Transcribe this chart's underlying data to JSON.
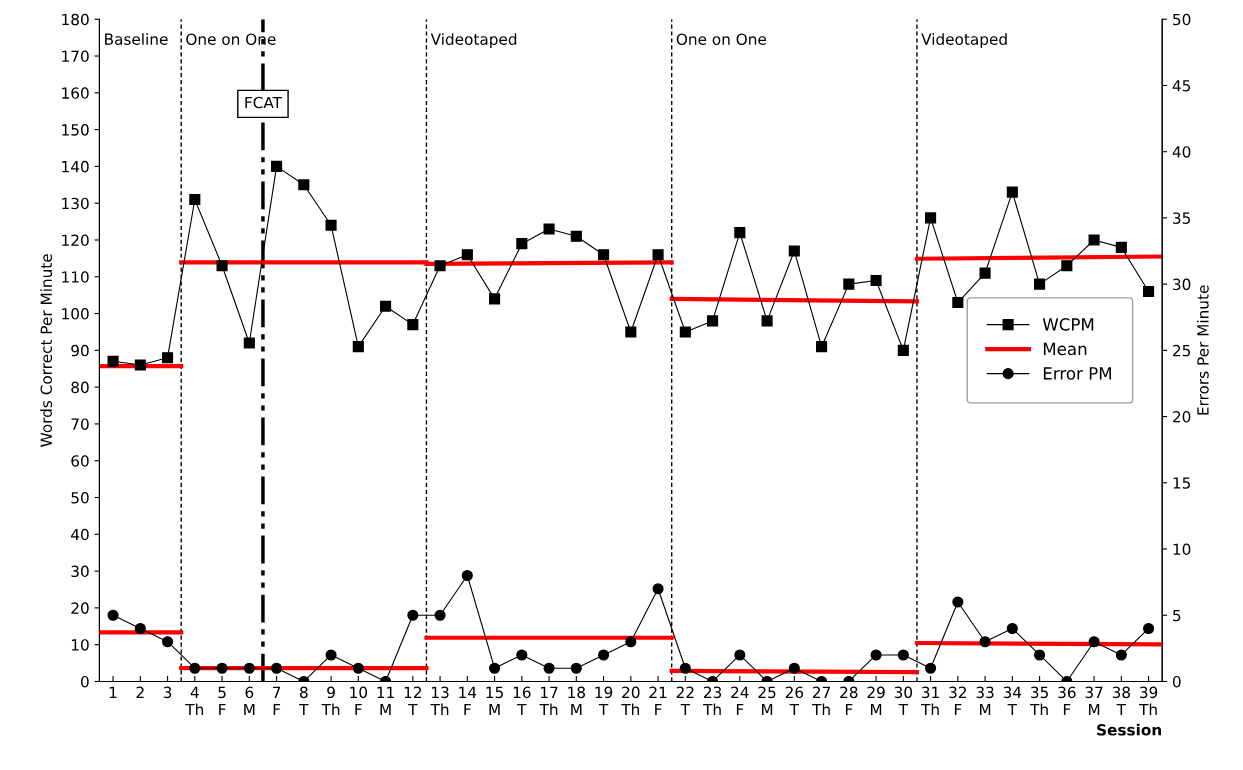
{
  "chart_data": {
    "type": "line",
    "xlabel": "Session",
    "ylabel": "Words Correct Per Minute",
    "y2label": "Errors Per Minute",
    "x": [
      1,
      2,
      3,
      4,
      5,
      6,
      7,
      8,
      9,
      10,
      11,
      12,
      13,
      14,
      15,
      16,
      17,
      18,
      19,
      20,
      21,
      22,
      23,
      24,
      25,
      26,
      27,
      28,
      29,
      30,
      31,
      32,
      33,
      34,
      35,
      36,
      37,
      38,
      39
    ],
    "xlim": [
      0.5,
      39.5
    ],
    "xticks": [
      1,
      2,
      3,
      {
        "value": 4,
        "label": "4\nTh"
      },
      {
        "value": 5,
        "label": "5\nF"
      },
      {
        "value": 6,
        "label": "6\nM"
      },
      {
        "value": 7,
        "label": "7\nF"
      },
      {
        "value": 8,
        "label": "8\nT"
      },
      {
        "value": 9,
        "label": "9\nTh"
      },
      {
        "value": 10,
        "label": "10\nF"
      },
      {
        "value": 11,
        "label": "11\nM"
      },
      {
        "value": 12,
        "label": "12\nT"
      },
      {
        "value": 13,
        "label": "13\nTh"
      },
      {
        "value": 14,
        "label": "14\nF"
      },
      {
        "value": 15,
        "label": "15\nM"
      },
      {
        "value": 16,
        "label": "16\nT"
      },
      {
        "value": 17,
        "label": "17\nTh"
      },
      {
        "value": 18,
        "label": "18\nM"
      },
      {
        "value": 19,
        "label": "19\nT"
      },
      {
        "value": 20,
        "label": "20\nTh"
      },
      {
        "value": 21,
        "label": "21\nF"
      },
      {
        "value": 22,
        "label": "22\nT"
      },
      {
        "value": 23,
        "label": "23\nTh"
      },
      {
        "value": 24,
        "label": "24\nF"
      },
      {
        "value": 25,
        "label": "25\nM"
      },
      {
        "value": 26,
        "label": "26\nT"
      },
      {
        "value": 27,
        "label": "27\nTh"
      },
      {
        "value": 28,
        "label": "28\nF"
      },
      {
        "value": 29,
        "label": "29\nM"
      },
      {
        "value": 30,
        "label": "30\nT"
      },
      {
        "value": 31,
        "label": "31\nTh"
      },
      {
        "value": 32,
        "label": "32\nF"
      },
      {
        "value": 33,
        "label": "33\nM"
      },
      {
        "value": 34,
        "label": "34\nT"
      },
      {
        "value": 35,
        "label": "35\nTh"
      },
      {
        "value": 36,
        "label": "36\nF"
      },
      {
        "value": 37,
        "label": "37\nM"
      },
      {
        "value": 38,
        "label": "38\nT"
      },
      {
        "value": 39,
        "label": "39\nTh"
      }
    ],
    "ylim": [
      0,
      180
    ],
    "yticks": [
      0,
      10,
      20,
      30,
      40,
      50,
      60,
      70,
      80,
      90,
      100,
      110,
      120,
      130,
      140,
      150,
      160,
      170,
      180
    ],
    "y2lim": [
      0,
      50
    ],
    "y2ticks": [
      0,
      5,
      10,
      15,
      20,
      25,
      30,
      35,
      40,
      45,
      50
    ],
    "grid": false,
    "legend": "right",
    "series": [
      {
        "name": "WCPM",
        "color": "#000000",
        "marker": "square",
        "values": [
          87,
          86,
          88,
          131,
          113,
          92,
          140,
          135,
          124,
          91,
          102,
          97,
          113,
          116,
          104,
          119,
          123,
          121,
          116,
          95,
          116,
          95,
          98,
          122,
          98,
          117,
          91,
          108,
          109,
          90,
          126,
          103,
          111,
          133,
          108,
          113,
          120,
          118,
          106
        ]
      },
      {
        "name": "Mean",
        "color": "#ff0000",
        "marker": "none",
        "x": [
          0.5,
          3.5,
          null,
          3.5,
          12.5,
          null,
          12.5,
          21.5,
          null,
          21.5,
          30.5,
          null,
          30.5,
          39.5
        ],
        "values": [
          85.7,
          85.7,
          null,
          113.9,
          113.9,
          null,
          113.5,
          113.9,
          null,
          104,
          103.3,
          null,
          114.9,
          115.5
        ]
      },
      {
        "name": "Error PM",
        "color": "#000000",
        "marker": "circle",
        "axis": "y2",
        "values": [
          5,
          4,
          3,
          1,
          1,
          1,
          1,
          0,
          2,
          1,
          0,
          5,
          5,
          8,
          1,
          2,
          1,
          1,
          2,
          3,
          7,
          1,
          0,
          2,
          0,
          1,
          0,
          0,
          2,
          2,
          1,
          6,
          3,
          4,
          2,
          0,
          3,
          2,
          4
        ]
      },
      {
        "color": "#ff0000",
        "marker": "none",
        "axis": "y2",
        "x": [
          0.5,
          3.5,
          null,
          3.5,
          12.5,
          null,
          12.5,
          21.5,
          null,
          21.5,
          30.5,
          null,
          30.5,
          39.5
        ],
        "values": [
          3.7,
          3.7,
          null,
          1.0,
          1.0,
          null,
          3.3,
          3.3,
          null,
          0.8,
          0.7,
          null,
          2.9,
          2.8
        ]
      }
    ],
    "ref_lines": [
      {
        "axis": "x",
        "value": 3.5,
        "line_style": "dashed",
        "color": "#000000"
      },
      {
        "axis": "x",
        "value": 12.5,
        "line_style": "dashed",
        "color": "#000000"
      },
      {
        "axis": "x",
        "value": 21.5,
        "line_style": "dashed",
        "color": "#000000"
      },
      {
        "axis": "x",
        "value": 30.5,
        "line_style": "dashed",
        "color": "#000000"
      },
      {
        "axis": "x",
        "value": 6.5,
        "line_style": "dashdot",
        "color": "#000000",
        "label": "FCAT"
      }
    ],
    "annotations": [
      "Baseline",
      "One on One",
      "Videotaped",
      "One on One",
      "Videotaped"
    ]
  }
}
